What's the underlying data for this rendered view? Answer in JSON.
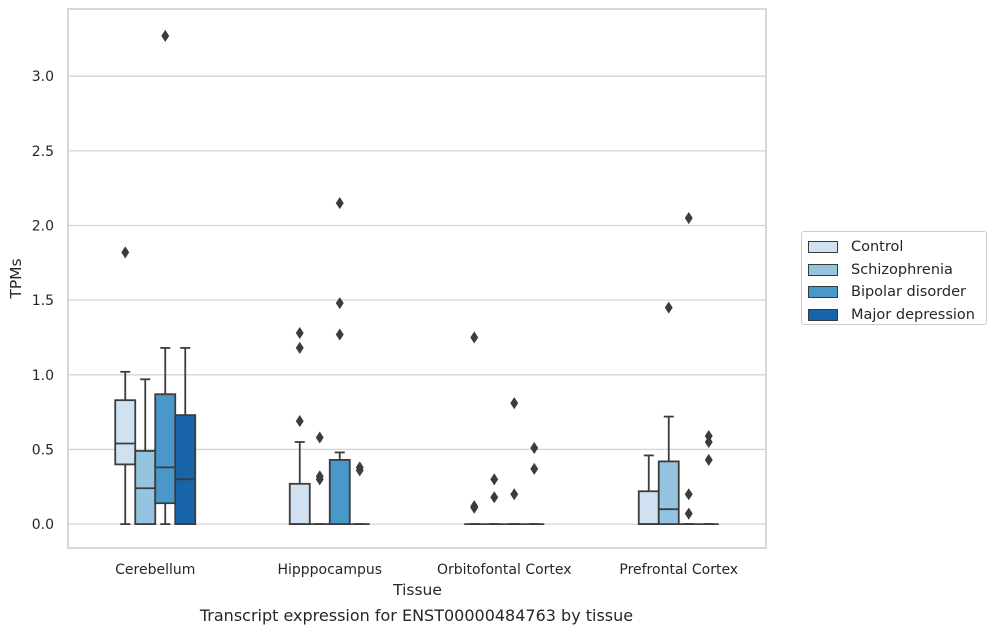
{
  "caption": "Transcript expression for ENST00000484763 by tissue",
  "chart_data": {
    "type": "box",
    "xlabel": "Tissue",
    "ylabel": "TPMs",
    "ylim": [
      -0.16,
      3.45
    ],
    "yticks": [
      0.0,
      0.5,
      1.0,
      1.5,
      2.0,
      2.5,
      3.0
    ],
    "ytick_labels": [
      "0.0",
      "0.5",
      "1.0",
      "1.5",
      "2.0",
      "2.5",
      "3.0"
    ],
    "grid": true,
    "legend_position": "right",
    "categories": [
      "Cerebellum",
      "Hipppocampus",
      "Orbitofontal Cortex",
      "Prefrontal Cortex"
    ],
    "series": [
      {
        "name": "Control",
        "color": "#d0e1f2",
        "boxes": [
          {
            "q1": 0.4,
            "median": 0.54,
            "q3": 0.83,
            "whisker_low": 0.0,
            "whisker_high": 1.02,
            "outliers": [
              1.82
            ]
          },
          {
            "q1": 0.0,
            "median": 0.0,
            "q3": 0.27,
            "whisker_low": 0.0,
            "whisker_high": 0.55,
            "outliers": [
              0.69,
              1.18,
              1.28
            ]
          },
          {
            "q1": 0.0,
            "median": 0.0,
            "q3": 0.0,
            "whisker_low": 0.0,
            "whisker_high": 0.0,
            "outliers": [
              0.11,
              0.12,
              1.25
            ]
          },
          {
            "q1": 0.0,
            "median": 0.0,
            "q3": 0.22,
            "whisker_low": 0.0,
            "whisker_high": 0.46,
            "outliers": []
          }
        ]
      },
      {
        "name": "Schizophrenia",
        "color": "#94c4df",
        "boxes": [
          {
            "q1": 0.0,
            "median": 0.24,
            "q3": 0.49,
            "whisker_low": 0.0,
            "whisker_high": 0.97,
            "outliers": []
          },
          {
            "q1": 0.0,
            "median": 0.0,
            "q3": 0.0,
            "whisker_low": 0.0,
            "whisker_high": 0.0,
            "outliers": [
              0.3,
              0.32,
              0.58
            ]
          },
          {
            "q1": 0.0,
            "median": 0.0,
            "q3": 0.0,
            "whisker_low": 0.0,
            "whisker_high": 0.0,
            "outliers": [
              0.18,
              0.3
            ]
          },
          {
            "q1": 0.0,
            "median": 0.1,
            "q3": 0.42,
            "whisker_low": 0.0,
            "whisker_high": 0.72,
            "outliers": [
              1.45
            ]
          }
        ]
      },
      {
        "name": "Bipolar disorder",
        "color": "#4a98c9",
        "boxes": [
          {
            "q1": 0.14,
            "median": 0.38,
            "q3": 0.87,
            "whisker_low": 0.0,
            "whisker_high": 1.18,
            "outliers": [
              3.27
            ]
          },
          {
            "q1": 0.0,
            "median": 0.0,
            "q3": 0.43,
            "whisker_low": 0.0,
            "whisker_high": 0.48,
            "outliers": [
              1.27,
              1.48,
              2.15
            ]
          },
          {
            "q1": 0.0,
            "median": 0.0,
            "q3": 0.0,
            "whisker_low": 0.0,
            "whisker_high": 0.0,
            "outliers": [
              0.2,
              0.81
            ]
          },
          {
            "q1": 0.0,
            "median": 0.0,
            "q3": 0.0,
            "whisker_low": 0.0,
            "whisker_high": 0.0,
            "outliers": [
              0.07,
              0.2,
              2.05
            ]
          }
        ]
      },
      {
        "name": "Major depression",
        "color": "#1764ab",
        "boxes": [
          {
            "q1": 0.0,
            "median": 0.3,
            "q3": 0.73,
            "whisker_low": 0.0,
            "whisker_high": 1.18,
            "outliers": []
          },
          {
            "q1": 0.0,
            "median": 0.0,
            "q3": 0.0,
            "whisker_low": 0.0,
            "whisker_high": 0.0,
            "outliers": [
              0.36,
              0.38
            ]
          },
          {
            "q1": 0.0,
            "median": 0.0,
            "q3": 0.0,
            "whisker_low": 0.0,
            "whisker_high": 0.0,
            "outliers": [
              0.37,
              0.51
            ]
          },
          {
            "q1": 0.0,
            "median": 0.0,
            "q3": 0.0,
            "whisker_low": 0.0,
            "whisker_high": 0.0,
            "outliers": [
              0.43,
              0.55,
              0.59
            ]
          }
        ]
      }
    ]
  }
}
